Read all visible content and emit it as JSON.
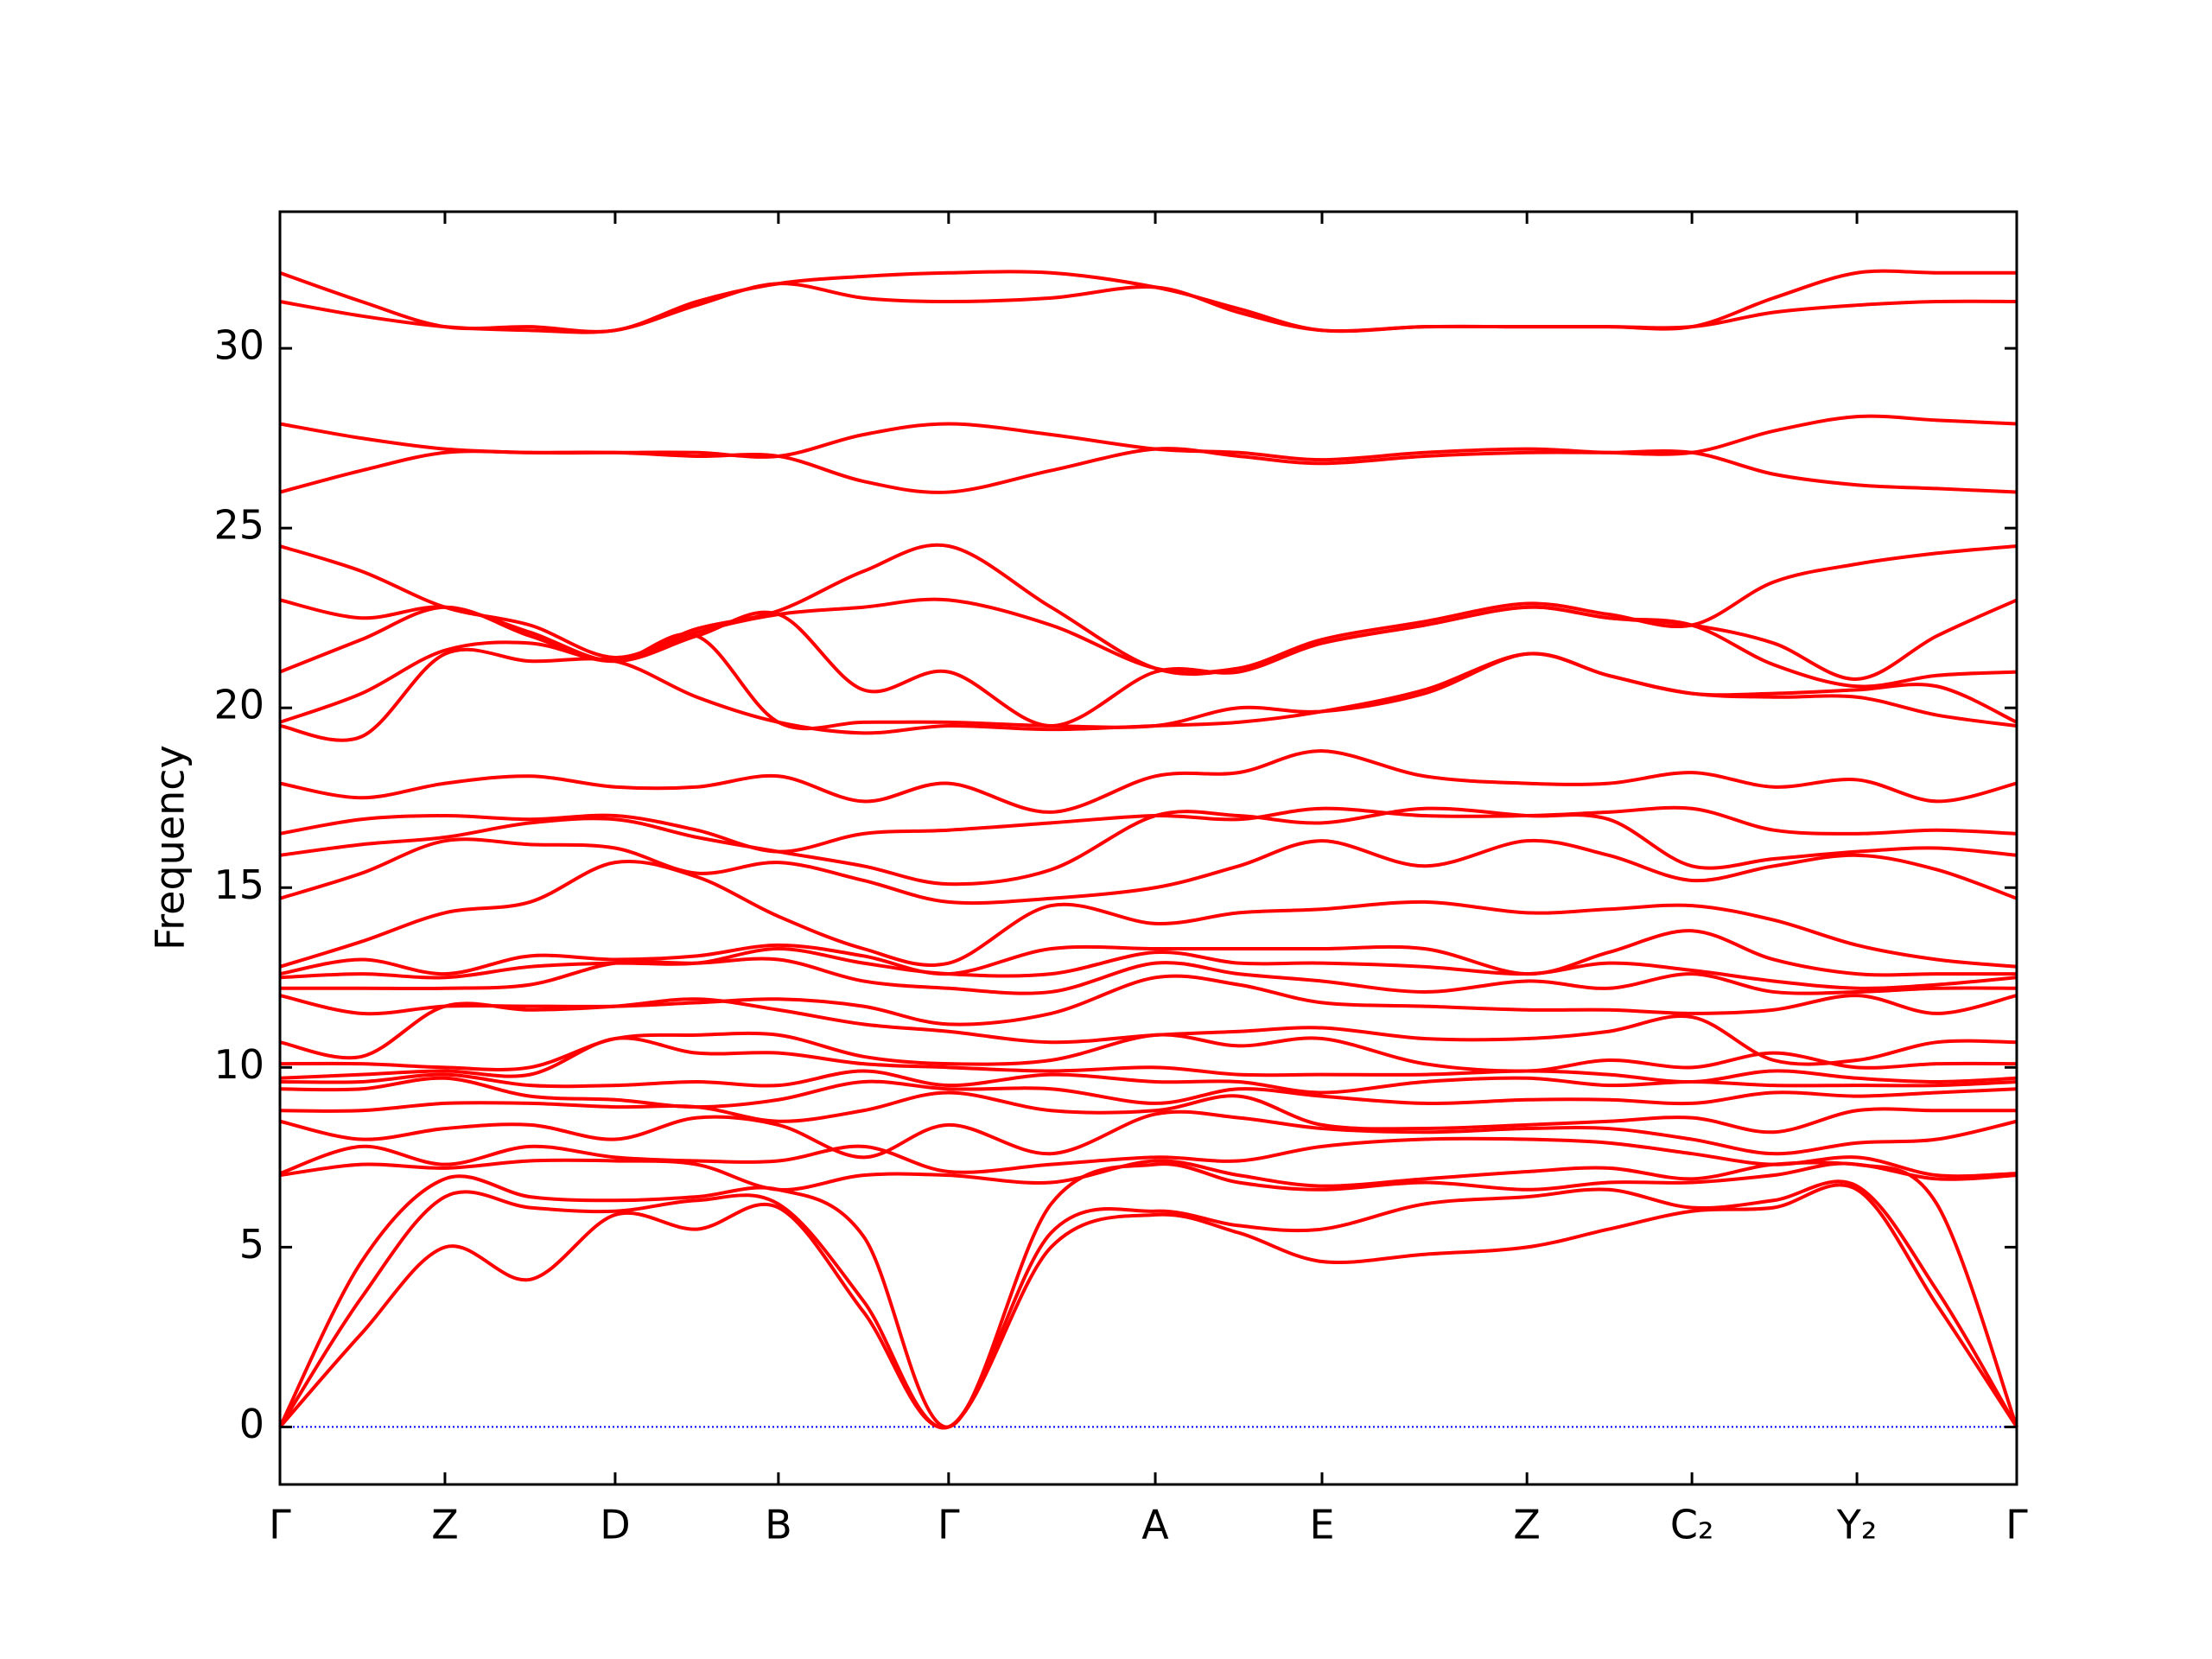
{
  "chart_data": {
    "type": "line",
    "ylabel": "Frequency",
    "color": "#ff0000",
    "hline": 0,
    "hline_color": "#0000ff",
    "xlim": [
      0,
      1
    ],
    "ylim": [
      -1.6,
      33.8
    ],
    "yticks": [
      0,
      5,
      10,
      15,
      20,
      25,
      30
    ],
    "xticks": [
      {
        "value": 0,
        "label": "Γ"
      },
      {
        "value": 0.095,
        "label": "Z"
      },
      {
        "value": 0.193,
        "label": "D"
      },
      {
        "value": 0.287,
        "label": "B"
      },
      {
        "value": 0.385,
        "label": "Γ"
      },
      {
        "value": 0.504,
        "label": "A"
      },
      {
        "value": 0.6,
        "label": "E"
      },
      {
        "value": 0.718,
        "label": "Z"
      },
      {
        "value": 0.813,
        "label": "C₂"
      },
      {
        "value": 0.908,
        "label": "Y₂"
      },
      {
        "value": 1,
        "label": "Γ"
      }
    ],
    "x": [
      0,
      0.047,
      0.095,
      0.144,
      0.193,
      0.24,
      0.287,
      0.336,
      0.385,
      0.444,
      0.504,
      0.552,
      0.6,
      0.659,
      0.718,
      0.765,
      0.813,
      0.86,
      0.908,
      0.954,
      1
    ],
    "series": [
      {
        "values": [
          0,
          2.6,
          5.0,
          4.1,
          5.9,
          5.5,
          6.1,
          3.2,
          0,
          5.0,
          5.9,
          5.4,
          4.6,
          4.8,
          5.0,
          5.5,
          6.0,
          6.1,
          6.6,
          3.4,
          0
        ]
      },
      {
        "values": [
          0,
          3.6,
          6.4,
          6.1,
          6.0,
          6.3,
          6.2,
          3.5,
          0,
          5.4,
          6.0,
          5.6,
          5.5,
          6.2,
          6.4,
          6.6,
          6.1,
          6.3,
          6.7,
          3.8,
          0
        ]
      },
      {
        "values": [
          0,
          4.6,
          6.9,
          6.4,
          6.3,
          6.4,
          6.6,
          5.3,
          0,
          6.2,
          7.3,
          6.8,
          6.6,
          6.8,
          6.6,
          6.8,
          6.8,
          7.0,
          7.3,
          6.2,
          0
        ]
      },
      {
        "values": [
          7.0,
          7.3,
          7.2,
          7.4,
          7.4,
          7.3,
          6.6,
          7.0,
          7.0,
          6.8,
          7.4,
          7.0,
          6.7,
          6.9,
          7.1,
          7.2,
          6.9,
          7.3,
          7.3,
          6.9,
          7.0
        ]
      },
      {
        "values": [
          7.05,
          7.8,
          7.3,
          7.8,
          7.5,
          7.4,
          7.4,
          7.8,
          7.1,
          7.3,
          7.5,
          7.4,
          7.8,
          8.0,
          8.0,
          7.9,
          7.6,
          7.3,
          7.5,
          7.0,
          7.05
        ]
      },
      {
        "values": [
          8.5,
          8.0,
          8.3,
          8.4,
          8.0,
          8.6,
          8.4,
          7.5,
          8.4,
          7.6,
          8.7,
          8.6,
          8.3,
          8.2,
          8.3,
          8.3,
          8.0,
          7.6,
          7.9,
          8.0,
          8.5
        ]
      },
      {
        "values": [
          8.8,
          8.8,
          9.0,
          9.0,
          8.9,
          8.9,
          8.5,
          8.8,
          9.3,
          8.8,
          8.8,
          9.2,
          8.4,
          8.3,
          8.4,
          8.5,
          8.6,
          8.2,
          8.8,
          8.8,
          8.8
        ]
      },
      {
        "values": [
          9.4,
          9.4,
          9.7,
          9.2,
          9.1,
          8.9,
          9.1,
          9.6,
          9.4,
          9.4,
          9.0,
          9.4,
          9.2,
          9.0,
          9.1,
          9.1,
          9.0,
          9.3,
          9.2,
          9.3,
          9.4
        ]
      },
      {
        "values": [
          9.6,
          9.6,
          9.8,
          9.5,
          9.5,
          9.6,
          9.5,
          9.9,
          9.5,
          9.8,
          9.6,
          9.6,
          9.3,
          9.6,
          9.7,
          9.5,
          9.6,
          9.5,
          9.5,
          9.5,
          9.6
        ]
      },
      {
        "values": [
          9.7,
          9.8,
          9.9,
          9.8,
          10.8,
          10.4,
          10.4,
          10.1,
          10.0,
          9.9,
          10.0,
          9.8,
          9.8,
          9.8,
          9.9,
          9.8,
          9.6,
          9.9,
          9.7,
          9.6,
          9.7
        ]
      },
      {
        "values": [
          10.1,
          10.1,
          10.0,
          10.0,
          10.8,
          10.9,
          10.9,
          10.3,
          10.1,
          10.2,
          10.9,
          10.6,
          10.8,
          10.1,
          9.9,
          10.2,
          10.0,
          10.4,
          10.0,
          10.1,
          10.1
        ]
      },
      {
        "values": [
          10.7,
          10.3,
          11.7,
          11.6,
          11.7,
          11.9,
          11.6,
          11.2,
          11.0,
          10.7,
          10.9,
          11.0,
          11.1,
          10.8,
          10.8,
          11.0,
          11.4,
          10.2,
          10.2,
          10.7,
          10.7
        ]
      },
      {
        "values": [
          12.0,
          11.5,
          11.7,
          11.7,
          11.7,
          11.8,
          11.9,
          11.7,
          11.2,
          11.5,
          12.5,
          12.3,
          11.8,
          11.7,
          11.6,
          11.6,
          11.5,
          11.6,
          12.0,
          11.5,
          12.0
        ]
      },
      {
        "values": [
          12.2,
          12.2,
          12.2,
          12.3,
          12.9,
          12.9,
          13.0,
          12.4,
          12.2,
          12.1,
          12.9,
          12.6,
          12.4,
          12.1,
          12.4,
          12.2,
          12.6,
          12.1,
          12.1,
          12.2,
          12.2
        ]
      },
      {
        "values": [
          12.5,
          12.6,
          12.5,
          12.8,
          12.9,
          12.9,
          13.3,
          12.9,
          12.6,
          12.6,
          13.2,
          12.9,
          12.9,
          12.8,
          12.6,
          12.9,
          12.7,
          12.4,
          12.2,
          12.3,
          12.5
        ]
      },
      {
        "values": [
          12.6,
          13.0,
          12.6,
          13.1,
          13.0,
          13.1,
          13.4,
          13.1,
          12.6,
          13.3,
          13.3,
          13.3,
          13.3,
          13.3,
          12.6,
          13.2,
          13.8,
          13.0,
          12.6,
          12.6,
          12.6
        ]
      },
      {
        "values": [
          12.8,
          13.5,
          14.3,
          14.6,
          15.7,
          15.3,
          14.2,
          13.3,
          12.9,
          14.5,
          14.0,
          14.3,
          14.4,
          14.6,
          14.3,
          14.4,
          14.5,
          14.1,
          13.4,
          13.0,
          12.8
        ]
      },
      {
        "values": [
          14.7,
          15.4,
          16.3,
          16.2,
          16.1,
          15.4,
          15.7,
          15.2,
          14.6,
          14.7,
          15.0,
          15.6,
          16.3,
          15.6,
          16.3,
          15.9,
          15.2,
          15.6,
          15.9,
          15.5,
          14.7
        ]
      },
      {
        "values": [
          15.9,
          16.2,
          16.4,
          16.8,
          16.9,
          16.4,
          16.0,
          15.6,
          15.1,
          15.5,
          17.0,
          17.0,
          16.8,
          17.2,
          17.0,
          16.9,
          15.6,
          15.8,
          16.0,
          16.1,
          15.9
        ]
      },
      {
        "values": [
          16.5,
          16.9,
          17.0,
          16.9,
          17.0,
          16.6,
          16.0,
          16.5,
          16.6,
          16.8,
          17.0,
          16.9,
          17.2,
          17.0,
          17.0,
          17.1,
          17.2,
          16.6,
          16.5,
          16.6,
          16.5
        ]
      },
      {
        "values": [
          17.9,
          17.5,
          17.9,
          18.1,
          17.8,
          17.8,
          18.1,
          17.4,
          17.9,
          17.1,
          18.1,
          18.2,
          18.8,
          18.1,
          17.9,
          17.9,
          18.2,
          17.8,
          18.0,
          17.4,
          17.9
        ]
      },
      {
        "values": [
          19.5,
          19.2,
          21.5,
          21.3,
          21.3,
          20.3,
          19.6,
          19.3,
          19.5,
          19.4,
          19.5,
          19.6,
          19.9,
          20.5,
          21.5,
          20.9,
          20.4,
          20.3,
          20.3,
          19.8,
          19.5
        ]
      },
      {
        "values": [
          19.6,
          20.4,
          21.6,
          21.8,
          21.3,
          22.0,
          19.6,
          19.6,
          19.6,
          19.5,
          19.5,
          20.0,
          19.9,
          20.4,
          21.5,
          20.9,
          20.4,
          20.4,
          20.5,
          20.6,
          19.6
        ]
      },
      {
        "values": [
          21.0,
          21.9,
          22.8,
          22.0,
          21.3,
          22.0,
          22.6,
          20.5,
          21.0,
          19.5,
          21.0,
          21.0,
          21.8,
          22.3,
          22.8,
          22.5,
          22.3,
          21.2,
          20.6,
          20.9,
          21.0
        ]
      },
      {
        "values": [
          23.0,
          22.5,
          22.8,
          22.1,
          21.3,
          22.1,
          22.6,
          22.8,
          23.0,
          22.3,
          21.1,
          21.1,
          21.8,
          22.3,
          22.8,
          22.5,
          22.3,
          21.8,
          20.8,
          22.0,
          23.0
        ]
      },
      {
        "values": [
          24.5,
          23.8,
          22.8,
          22.3,
          21.4,
          22.2,
          22.7,
          23.8,
          24.5,
          22.8,
          21.1,
          21.1,
          21.9,
          22.4,
          22.9,
          22.6,
          22.3,
          23.5,
          24.0,
          24.3,
          24.5
        ]
      },
      {
        "values": [
          26.0,
          26.6,
          27.1,
          27.1,
          27.1,
          27.0,
          27.0,
          26.3,
          26.0,
          26.6,
          27.2,
          27.0,
          26.8,
          27.0,
          27.1,
          27.1,
          27.1,
          26.5,
          26.2,
          26.1,
          26.0
        ]
      },
      {
        "values": [
          27.9,
          27.5,
          27.2,
          27.1,
          27.1,
          27.1,
          27.0,
          27.6,
          27.9,
          27.6,
          27.2,
          27.1,
          26.9,
          27.1,
          27.2,
          27.1,
          27.1,
          27.7,
          28.1,
          28.0,
          27.9
        ]
      },
      {
        "values": [
          31.3,
          30.9,
          30.6,
          30.5,
          30.5,
          31.2,
          31.8,
          31.4,
          31.3,
          31.4,
          31.7,
          31.0,
          30.5,
          30.6,
          30.6,
          30.6,
          30.6,
          31.0,
          31.2,
          31.3,
          31.3
        ]
      },
      {
        "values": [
          32.1,
          31.3,
          30.6,
          30.6,
          30.5,
          31.3,
          31.8,
          32.0,
          32.1,
          32.1,
          31.7,
          31.1,
          30.5,
          30.6,
          30.6,
          30.6,
          30.6,
          31.4,
          32.1,
          32.1,
          32.1
        ]
      }
    ]
  }
}
